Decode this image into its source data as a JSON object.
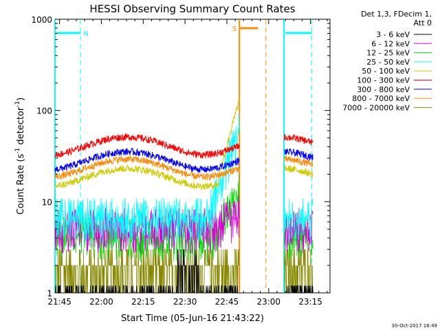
{
  "chart_data": {
    "type": "line",
    "title": "HESSI Observing Summary Count Rates",
    "xlabel": "Start Time (05-Jun-16 21:43:22)",
    "ylabel_main": "Count Rate (s",
    "ylabel_sup1": "-1",
    "ylabel_mid": " detector",
    "ylabel_sup2": "-1",
    "ylabel_end": ")",
    "yscale": "log",
    "ylim": [
      1,
      1000
    ],
    "xlim": [
      "21:43:22",
      "23:22:00"
    ],
    "x_ticks": [
      "21:45",
      "22:00",
      "22:15",
      "22:30",
      "22:45",
      "23:00",
      "23:15"
    ],
    "y_ticks": [
      "1",
      "10",
      "100",
      "1000"
    ],
    "legend_header": [
      "Det 1,3, FDecim 1,",
      "Att 0"
    ],
    "legend_position": "outside-right",
    "series": [
      {
        "name": "3 - 6 keV",
        "color": "#000000",
        "level": 1.6
      },
      {
        "name": "6 - 12 keV",
        "color": "#dd00dd",
        "level": 4.5
      },
      {
        "name": "12 - 25 keV",
        "color": "#00dd00",
        "level": 3.6
      },
      {
        "name": "25 - 50 keV",
        "color": "#00ffff",
        "level": 5.8
      },
      {
        "name": "50 - 100 keV",
        "color": "#cccc00",
        "level": 19
      },
      {
        "name": "100 - 300 keV",
        "color": "#ff0000",
        "level": 42
      },
      {
        "name": "300 - 800 keV",
        "color": "#0000ff",
        "level": 29
      },
      {
        "name": "800 - 7000 keV",
        "color": "#ff8800",
        "level": 24
      },
      {
        "name": "7000 - 20000 keV",
        "color": "#888800",
        "level": 1.5
      }
    ],
    "annotations": [
      {
        "label": "N",
        "color": "#00ffff",
        "start": "21:43:22",
        "end": "21:52:30",
        "kind": "night"
      },
      {
        "label": "S",
        "color": "#ff8800",
        "start": "22:49:30",
        "end": "22:59:00",
        "kind": "saa"
      },
      {
        "label": "",
        "color": "#00ffff",
        "start": "23:05:30",
        "end": "23:15:30",
        "kind": "night"
      }
    ],
    "timestamp": "30-Oct-2017 16:49"
  }
}
